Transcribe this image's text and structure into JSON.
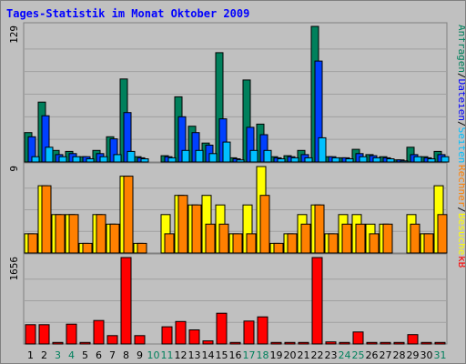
{
  "chart_data": {
    "type": "bar",
    "title": "Tages-Statistik im Monat Oktober 2009",
    "categories": [
      "1",
      "2",
      "3",
      "4",
      "5",
      "6",
      "7",
      "8",
      "9",
      "10",
      "11",
      "12",
      "13",
      "14",
      "15",
      "16",
      "17",
      "18",
      "19",
      "20",
      "21",
      "22",
      "23",
      "24",
      "25",
      "26",
      "27",
      "28",
      "29",
      "30",
      "31"
    ],
    "weekend_days": [
      "3",
      "4",
      "10",
      "11",
      "17",
      "18",
      "24",
      "25",
      "31"
    ],
    "panels": [
      {
        "id": "top",
        "max_label": "129",
        "ylim": [
          0,
          129
        ],
        "side_label_parts": [
          {
            "text": "Anfragen",
            "color": "#00805c"
          },
          {
            "text": "/",
            "color": "#000000"
          },
          {
            "text": "Dateien",
            "color": "#0000ff"
          },
          {
            "text": "/",
            "color": "#000000"
          },
          {
            "text": "Seiten",
            "color": "#00c0ff"
          }
        ],
        "series": [
          {
            "name": "Anfragen",
            "color": "#00805c",
            "values": [
              28,
              57,
              11,
              10,
              5,
              11,
              24,
              79,
              5,
              0,
              6,
              62,
              34,
              18,
              104,
              4,
              78,
              36,
              5,
              6,
              11,
              129,
              5,
              4,
              12,
              7,
              5,
              2,
              14,
              5,
              10
            ]
          },
          {
            "name": "Dateien",
            "color": "#0040ff",
            "values": [
              24,
              44,
              7,
              8,
              5,
              8,
              22,
              47,
              4,
              0,
              5,
              43,
              28,
              16,
              41,
              3,
              33,
              26,
              4,
              5,
              7,
              96,
              5,
              4,
              8,
              6,
              4,
              2,
              7,
              4,
              7
            ]
          },
          {
            "name": "Seiten",
            "color": "#00c0ff",
            "values": [
              5,
              14,
              5,
              5,
              3,
              5,
              7,
              10,
              3,
              0,
              4,
              11,
              11,
              8,
              19,
              2,
              11,
              11,
              3,
              4,
              4,
              23,
              4,
              3,
              5,
              4,
              3,
              1,
              5,
              3,
              5
            ]
          }
        ]
      },
      {
        "id": "mid",
        "max_label": "9",
        "ylim": [
          0,
          9
        ],
        "side_label_parts": [
          {
            "text": "Rechner",
            "color": "#ff8000"
          },
          {
            "text": "/",
            "color": "#000000"
          },
          {
            "text": "Besuche",
            "color": "#ffff00"
          }
        ],
        "series": [
          {
            "name": "Besuche",
            "color": "#ffff00",
            "values": [
              2,
              7,
              4,
              4,
              1,
              4,
              3,
              8,
              1,
              0,
              4,
              6,
              5,
              6,
              5,
              2,
              5,
              9,
              1,
              2,
              4,
              5,
              2,
              4,
              4,
              3,
              3,
              0,
              4,
              2,
              7
            ]
          },
          {
            "name": "Rechner",
            "color": "#ff8000",
            "values": [
              2,
              7,
              4,
              4,
              1,
              4,
              3,
              8,
              1,
              0,
              2,
              6,
              5,
              3,
              3,
              2,
              2,
              6,
              1,
              2,
              3,
              5,
              2,
              3,
              3,
              2,
              3,
              0,
              3,
              2,
              4
            ]
          }
        ]
      },
      {
        "id": "bot",
        "max_label": "1656",
        "ylim": [
          0,
          1656
        ],
        "side_label_parts": [
          {
            "text": "kB",
            "color": "#ff0000"
          }
        ],
        "series": [
          {
            "name": "kB",
            "color": "#ff0000",
            "values": [
              370,
              370,
              30,
              380,
              30,
              450,
              160,
              1656,
              160,
              0,
              330,
              430,
              270,
              60,
              590,
              30,
              440,
              520,
              30,
              30,
              30,
              1656,
              40,
              30,
              230,
              30,
              30,
              30,
              180,
              30,
              30
            ]
          }
        ]
      }
    ],
    "grid": true,
    "legend": "right side, vertical"
  },
  "colors": {
    "background": "#c0c0c0",
    "plot_background": "#c0c0c0",
    "title": "#0000ff",
    "weekday_label": "#000000",
    "weekend_label": "#00805c"
  }
}
